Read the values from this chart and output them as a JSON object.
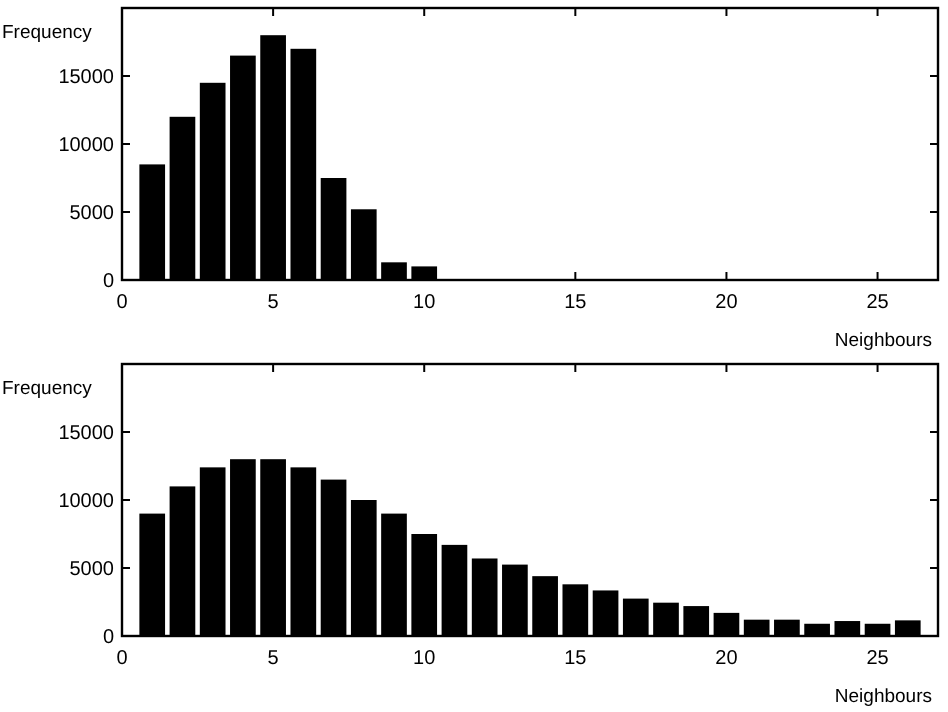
{
  "chart_data": [
    {
      "type": "bar",
      "ylabel": "Frequency",
      "xlabel": "Neighbours",
      "x": [
        1,
        2,
        3,
        4,
        5,
        6,
        7,
        8,
        9,
        10
      ],
      "values": [
        8500,
        12000,
        14500,
        16500,
        18000,
        17000,
        7500,
        5200,
        1300,
        1000
      ],
      "color": "#000000",
      "xlim": [
        0,
        27
      ],
      "xticks": [
        0,
        5,
        10,
        15,
        20,
        25
      ],
      "ylim": [
        0,
        20000
      ],
      "yticks": [
        0,
        5000,
        10000,
        15000
      ],
      "grid": false
    },
    {
      "type": "bar",
      "ylabel": "Frequency",
      "xlabel": "Neighbours",
      "x": [
        1,
        2,
        3,
        4,
        5,
        6,
        7,
        8,
        9,
        10,
        11,
        12,
        13,
        14,
        15,
        16,
        17,
        18,
        19,
        20,
        21,
        22,
        23,
        24,
        25,
        26
      ],
      "values": [
        9000,
        11000,
        12400,
        13000,
        13000,
        12400,
        11500,
        10000,
        9000,
        7500,
        6700,
        5700,
        5250,
        4400,
        3800,
        3350,
        2750,
        2450,
        2200,
        1700,
        1200,
        1200,
        900,
        1100,
        900,
        1150
      ],
      "color": "#000000",
      "xlim": [
        0,
        27
      ],
      "xticks": [
        0,
        5,
        10,
        15,
        20,
        25
      ],
      "ylim": [
        0,
        20000
      ],
      "yticks": [
        0,
        5000,
        10000,
        15000
      ],
      "grid": false
    }
  ]
}
